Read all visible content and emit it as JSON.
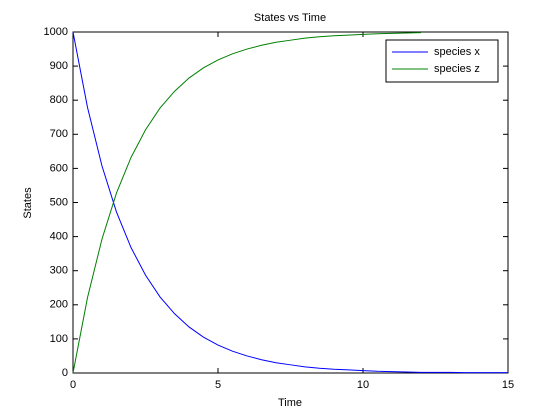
{
  "chart_data": {
    "type": "line",
    "title": "States vs Time",
    "x_label": "Time",
    "y_label": "States",
    "x": [
      0,
      0.5,
      1,
      1.5,
      2,
      2.5,
      3,
      3.5,
      4,
      4.5,
      5,
      5.5,
      6,
      6.5,
      7,
      7.5,
      8,
      8.5,
      9,
      9.5,
      10,
      10.5,
      11,
      11.5,
      12,
      12.5,
      13,
      13.5,
      14,
      14.5,
      15
    ],
    "series": [
      {
        "name": "species x",
        "color": "#0000ff",
        "values": [
          1000,
          779,
          607,
          472,
          368,
          287,
          223,
          174,
          135,
          105,
          82,
          64,
          50,
          39,
          30,
          24,
          18,
          14,
          11,
          9,
          7,
          5,
          4,
          3,
          2,
          2,
          2,
          1,
          1,
          1,
          1
        ]
      },
      {
        "name": "species z",
        "color": "#008000",
        "values": [
          0,
          221,
          393,
          528,
          632,
          713,
          777,
          826,
          865,
          895,
          918,
          936,
          950,
          961,
          970,
          976,
          982,
          986,
          989,
          991,
          993,
          995,
          996,
          997,
          998,
          null,
          null,
          null,
          null,
          null,
          null
        ]
      }
    ],
    "xlim": [
      0,
      15
    ],
    "xticks": [
      0,
      5,
      10,
      15
    ],
    "ylim": [
      0,
      1000
    ],
    "yticks": [
      0,
      100,
      200,
      300,
      400,
      500,
      600,
      700,
      800,
      900,
      1000
    ],
    "grid": false,
    "legend": "northeast"
  }
}
